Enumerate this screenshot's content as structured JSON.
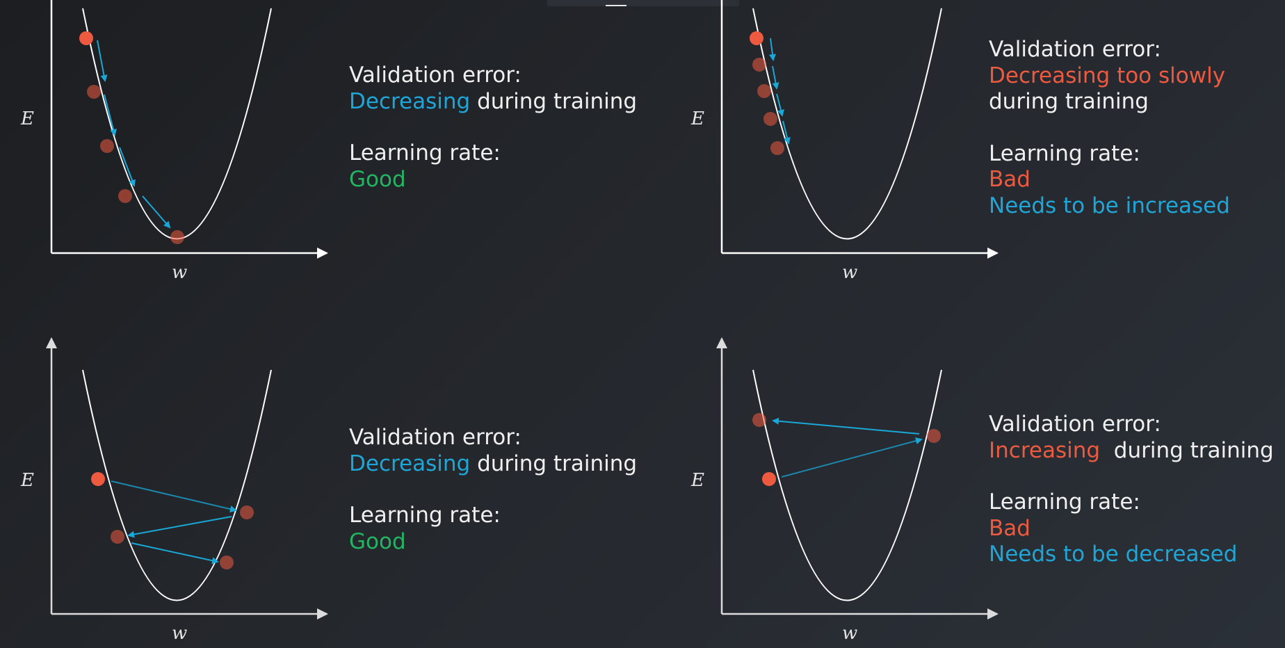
{
  "axis_labels": {
    "y": "E",
    "x": "w"
  },
  "colors": {
    "curve": "#ffffff",
    "arrow": "#18a9d8",
    "start_point": "#ee5a3f",
    "step_point": "#a9493a",
    "text_white": "#f0f0f0",
    "text_blue": "#1fa6d6",
    "text_red": "#ee5a3f",
    "text_green": "#24b563"
  },
  "panels": [
    {
      "validation_label": "Validation error:",
      "validation_status": "Decreasing",
      "validation_rest": " during training",
      "learning_label": "Learning rate:",
      "learning_status": "Good"
    },
    {
      "validation_label": "Validation error:",
      "validation_status": "Decreasing too slowly",
      "validation_rest": " during training",
      "learning_label": "Learning rate:",
      "learning_status": "Bad",
      "learning_advice": "Needs to be increased"
    },
    {
      "validation_label": "Validation error:",
      "validation_status": "Decreasing",
      "validation_rest": " during training",
      "learning_label": "Learning rate:",
      "learning_status": "Good"
    },
    {
      "validation_label": "Validation error:",
      "validation_status": "Increasing",
      "validation_rest": "  during training",
      "learning_label": "Learning rate:",
      "learning_status": "Bad",
      "learning_advice": "Needs to be decreased"
    }
  ]
}
